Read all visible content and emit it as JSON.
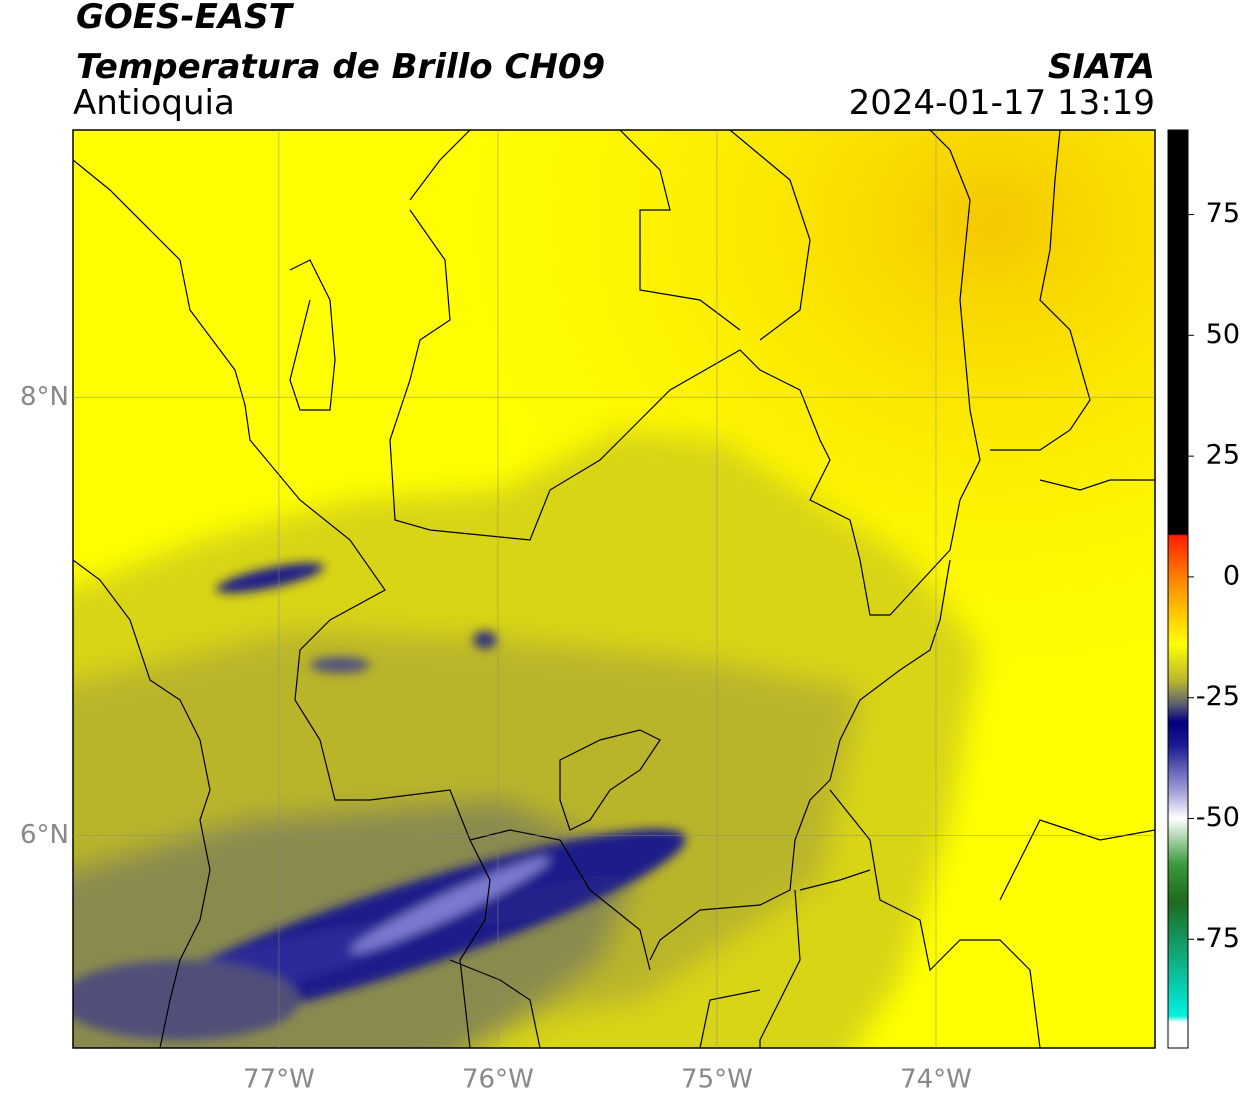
{
  "header": {
    "title": "GOES-EAST",
    "subtitle": "Temperatura de Brillo CH09",
    "region": "Antioquia",
    "source": "SIATA",
    "datetime": "2024-01-17 13:19"
  },
  "map": {
    "xlim": [
      -77.94,
      -73.0
    ],
    "ylim": [
      5.03,
      9.22
    ],
    "xticks": [
      {
        "value": -77,
        "label": "77°W"
      },
      {
        "value": -76,
        "label": "76°W"
      },
      {
        "value": -75,
        "label": "75°W"
      },
      {
        "value": -74,
        "label": "74°W"
      }
    ],
    "yticks": [
      {
        "value": 8,
        "label": "8°N"
      },
      {
        "value": 6,
        "label": "6°N"
      }
    ],
    "grid": true
  },
  "colorbar": {
    "lim": [
      -97.5,
      92.5
    ],
    "ticks": [
      75,
      50,
      25,
      0,
      -25,
      -50,
      -75
    ]
  }
}
